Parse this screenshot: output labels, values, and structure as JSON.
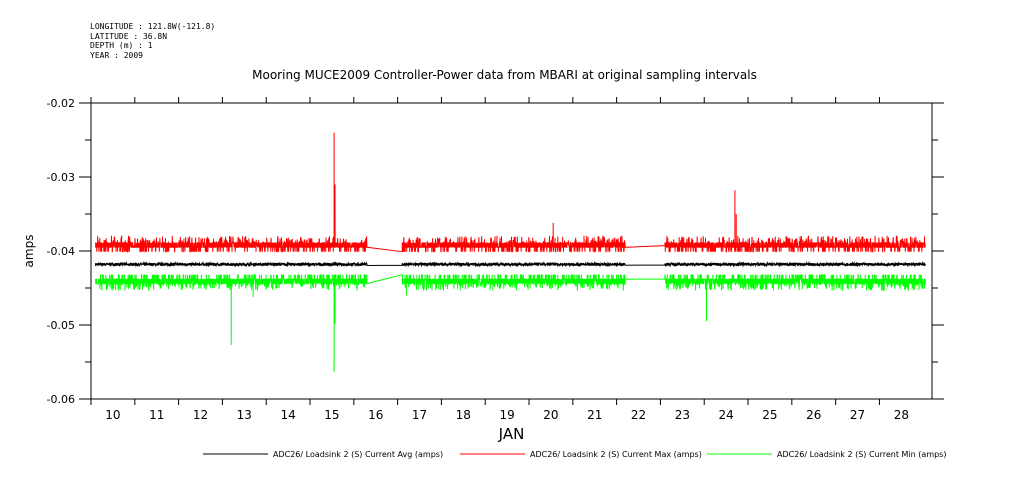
{
  "header": {
    "longitude": "LONGITUDE : 121.8W(-121.8)",
    "latitude": "LATITUDE : 36.8N",
    "depth": "DEPTH (m) : 1",
    "year": "YEAR : 2009"
  },
  "chart_data": {
    "type": "line",
    "title": "Mooring MUCE2009 Controller-Power data from MBARI at original sampling intervals",
    "xlabel": "JAN",
    "ylabel": "amps",
    "x_ticks": [
      "10",
      "11",
      "12",
      "13",
      "14",
      "15",
      "16",
      "17",
      "18",
      "19",
      "20",
      "21",
      "22",
      "23",
      "24",
      "25",
      "26",
      "27",
      "28"
    ],
    "y_ticks": [
      "-0.02",
      "-0.03",
      "-0.04",
      "-0.05",
      "-0.06"
    ],
    "xlim": [
      9.5,
      28.7
    ],
    "ylim": [
      -0.06,
      -0.02
    ],
    "grid": false,
    "legend_position": "bottom",
    "gaps": [
      [
        15.8,
        16.6
      ],
      [
        21.7,
        22.6
      ]
    ],
    "series": [
      {
        "name": "ADC26/ Loadsink 2 (S) Current Avg (amps)",
        "color": "#000000",
        "baseline": -0.0418,
        "noise": 0.0004,
        "spikes": []
      },
      {
        "name": "ADC26/ Loadsink 2 (S) Current Max (amps)",
        "color": "#ff0000",
        "baseline": -0.0395,
        "noise": 0.0012,
        "spikes": [
          [
            15.05,
            -0.024
          ],
          [
            15.07,
            -0.031
          ],
          [
            20.05,
            -0.0362
          ],
          [
            24.2,
            -0.0318
          ],
          [
            24.23,
            -0.035
          ]
        ]
      },
      {
        "name": "ADC26/ Loadsink 2 (S) Current Min (amps)",
        "color": "#00ff00",
        "baseline": -0.0438,
        "noise": 0.0012,
        "spikes": [
          [
            12.7,
            -0.0527
          ],
          [
            15.05,
            -0.0563
          ],
          [
            15.07,
            -0.0498
          ],
          [
            23.55,
            -0.0495
          ],
          [
            13.2,
            -0.0462
          ],
          [
            16.7,
            -0.046
          ]
        ]
      }
    ]
  }
}
